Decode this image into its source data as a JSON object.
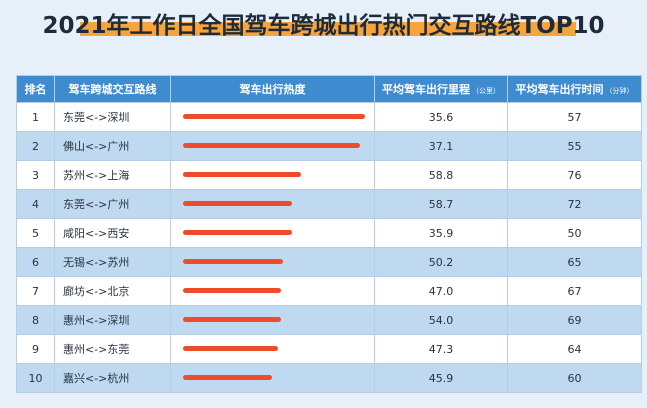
{
  "title": "2021年工作日全国驾车跨城出行热门交互路线TOP10",
  "colors": {
    "header_bg": "#3e8bd0",
    "bar": "#ee4b2b",
    "row_alt": "#bfd9f0",
    "title_underline": "#f7a43a"
  },
  "headers": {
    "rank": "排名",
    "route": "驾车跨城交互路线",
    "heat": "驾车出行热度",
    "distance": "平均驾车出行里程",
    "distance_unit": "（公里）",
    "time": "平均驾车出行时间",
    "time_unit": "（分钟）"
  },
  "chart_data": {
    "type": "table",
    "title": "2021年工作日全国驾车跨城出行热门交互路线TOP10",
    "columns": [
      "排名",
      "驾车跨城交互路线",
      "驾车出行热度",
      "平均驾车出行里程（公里）",
      "平均驾车出行时间（分钟）"
    ],
    "rows": [
      {
        "rank": "1",
        "route": "东莞<->深圳",
        "heat": 1.0,
        "distance": "35.6",
        "time": "57"
      },
      {
        "rank": "2",
        "route": "佛山<->广州",
        "heat": 0.97,
        "distance": "37.1",
        "time": "55"
      },
      {
        "rank": "3",
        "route": "苏州<->上海",
        "heat": 0.65,
        "distance": "58.8",
        "time": "76"
      },
      {
        "rank": "4",
        "route": "东莞<->广州",
        "heat": 0.6,
        "distance": "58.7",
        "time": "72"
      },
      {
        "rank": "5",
        "route": "咸阳<->西安",
        "heat": 0.6,
        "distance": "35.9",
        "time": "50"
      },
      {
        "rank": "6",
        "route": "无锡<->苏州",
        "heat": 0.55,
        "distance": "50.2",
        "time": "65"
      },
      {
        "rank": "7",
        "route": "廊坊<->北京",
        "heat": 0.54,
        "distance": "47.0",
        "time": "67"
      },
      {
        "rank": "8",
        "route": "惠州<->深圳",
        "heat": 0.54,
        "distance": "54.0",
        "time": "69"
      },
      {
        "rank": "9",
        "route": "惠州<->东莞",
        "heat": 0.52,
        "distance": "47.3",
        "time": "64"
      },
      {
        "rank": "10",
        "route": "嘉兴<->杭州",
        "heat": 0.49,
        "distance": "45.9",
        "time": "60"
      }
    ]
  }
}
